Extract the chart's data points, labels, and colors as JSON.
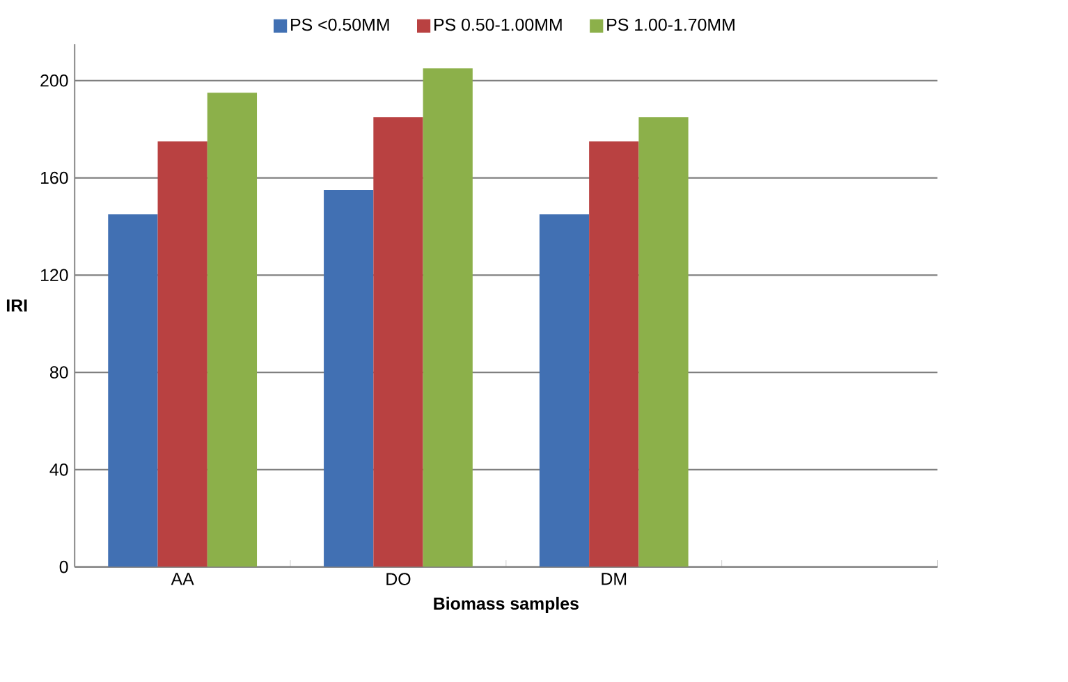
{
  "chart_data": {
    "type": "bar",
    "xlabel": "Biomass samples",
    "ylabel": "IRI",
    "categories": [
      "AA",
      "DO",
      "DM",
      null
    ],
    "series": [
      {
        "name": "PS <0.50MM",
        "color": "#4170b3",
        "values": [
          145,
          155,
          145,
          null
        ]
      },
      {
        "name": "PS 0.50-1.00MM",
        "color": "#b94141",
        "values": [
          175,
          185,
          175,
          null
        ]
      },
      {
        "name": "PS 1.00-1.70MM",
        "color": "#8cb04a",
        "values": [
          195,
          205,
          185,
          null
        ]
      }
    ],
    "ylim": [
      0,
      215
    ],
    "yticks": [
      0,
      40,
      80,
      120,
      160,
      200
    ],
    "grid": "y",
    "legend": "top"
  }
}
